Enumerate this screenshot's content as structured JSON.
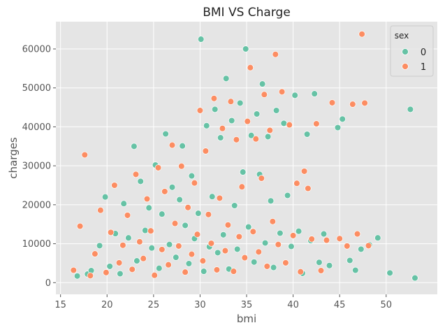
{
  "chart_data": {
    "type": "scatter",
    "title": "BMI VS Charge",
    "xlabel": "bmi",
    "ylabel": "charges",
    "xlim": [
      14.5,
      55.5
    ],
    "ylim": [
      -3000,
      67000
    ],
    "xticks": [
      15,
      20,
      25,
      30,
      35,
      40,
      45,
      50
    ],
    "yticks": [
      0,
      10000,
      20000,
      30000,
      40000,
      50000,
      60000
    ],
    "xtick_labels": [
      "15",
      "20",
      "25",
      "30",
      "35",
      "40",
      "45",
      "50"
    ],
    "ytick_labels": [
      "0",
      "10000",
      "20000",
      "30000",
      "40000",
      "50000",
      "60000"
    ],
    "grid": true,
    "legend": {
      "title": "sex",
      "placement": "top-right",
      "entries": [
        {
          "label": "0",
          "color": "#66c2a5"
        },
        {
          "label": "1",
          "color": "#fc8d62"
        }
      ]
    },
    "series": [
      {
        "name": "0",
        "color": "#66c2a5",
        "points": [
          [
            16.8,
            1700
          ],
          [
            17.9,
            2200
          ],
          [
            18.3,
            3100
          ],
          [
            19.2,
            9500
          ],
          [
            19.8,
            22000
          ],
          [
            20.3,
            4200
          ],
          [
            20.9,
            12600
          ],
          [
            21.4,
            2300
          ],
          [
            21.8,
            20300
          ],
          [
            22.3,
            11500
          ],
          [
            22.9,
            35000
          ],
          [
            23.2,
            5600
          ],
          [
            23.6,
            26000
          ],
          [
            24.1,
            13400
          ],
          [
            24.5,
            19200
          ],
          [
            24.8,
            8900
          ],
          [
            25.2,
            30200
          ],
          [
            25.6,
            3700
          ],
          [
            25.9,
            17600
          ],
          [
            26.3,
            38200
          ],
          [
            26.7,
            9800
          ],
          [
            27.0,
            24500
          ],
          [
            27.4,
            6500
          ],
          [
            27.8,
            21300
          ],
          [
            28.1,
            35100
          ],
          [
            28.4,
            14700
          ],
          [
            28.8,
            4900
          ],
          [
            29.1,
            27400
          ],
          [
            29.4,
            11300
          ],
          [
            29.8,
            17800
          ],
          [
            30.1,
            62500
          ],
          [
            30.4,
            2900
          ],
          [
            30.7,
            40300
          ],
          [
            31.0,
            9200
          ],
          [
            31.3,
            22100
          ],
          [
            31.6,
            44500
          ],
          [
            31.9,
            7700
          ],
          [
            32.2,
            37200
          ],
          [
            32.5,
            12300
          ],
          [
            32.8,
            52400
          ],
          [
            33.1,
            3500
          ],
          [
            33.4,
            41600
          ],
          [
            33.7,
            19800
          ],
          [
            34.0,
            8600
          ],
          [
            34.3,
            46100
          ],
          [
            34.6,
            28400
          ],
          [
            34.9,
            60000
          ],
          [
            35.2,
            14300
          ],
          [
            35.5,
            37800
          ],
          [
            35.8,
            5300
          ],
          [
            36.1,
            43300
          ],
          [
            36.4,
            27800
          ],
          [
            36.7,
            51000
          ],
          [
            37.0,
            10200
          ],
          [
            37.3,
            37500
          ],
          [
            37.6,
            21000
          ],
          [
            37.9,
            3900
          ],
          [
            38.2,
            44200
          ],
          [
            38.6,
            12700
          ],
          [
            39.0,
            40900
          ],
          [
            39.4,
            22400
          ],
          [
            39.8,
            9300
          ],
          [
            40.2,
            48100
          ],
          [
            40.6,
            13200
          ],
          [
            41.0,
            2400
          ],
          [
            41.5,
            38100
          ],
          [
            41.9,
            10800
          ],
          [
            42.3,
            48500
          ],
          [
            42.8,
            5200
          ],
          [
            43.3,
            12500
          ],
          [
            43.9,
            4400
          ],
          [
            44.8,
            39800
          ],
          [
            45.3,
            42000
          ],
          [
            46.1,
            5700
          ],
          [
            46.7,
            3200
          ],
          [
            47.3,
            8600
          ],
          [
            48.2,
            9700
          ],
          [
            49.1,
            11500
          ],
          [
            50.4,
            2500
          ],
          [
            52.6,
            44500
          ],
          [
            53.1,
            1200
          ]
        ]
      },
      {
        "name": "1",
        "color": "#fc8d62",
        "points": [
          [
            16.4,
            3200
          ],
          [
            17.1,
            14500
          ],
          [
            17.6,
            32800
          ],
          [
            18.2,
            1800
          ],
          [
            18.7,
            7400
          ],
          [
            19.3,
            18600
          ],
          [
            19.9,
            2600
          ],
          [
            20.4,
            12900
          ],
          [
            20.8,
            25000
          ],
          [
            21.3,
            5100
          ],
          [
            21.7,
            9600
          ],
          [
            22.2,
            17300
          ],
          [
            22.7,
            3400
          ],
          [
            23.1,
            27800
          ],
          [
            23.5,
            10500
          ],
          [
            23.9,
            6200
          ],
          [
            24.3,
            21500
          ],
          [
            24.7,
            13300
          ],
          [
            25.1,
            1900
          ],
          [
            25.5,
            29500
          ],
          [
            25.9,
            8500
          ],
          [
            26.2,
            23400
          ],
          [
            26.6,
            4600
          ],
          [
            27.0,
            35300
          ],
          [
            27.3,
            15200
          ],
          [
            27.7,
            9400
          ],
          [
            28.0,
            29900
          ],
          [
            28.4,
            2700
          ],
          [
            28.7,
            19300
          ],
          [
            29.1,
            7300
          ],
          [
            29.4,
            25600
          ],
          [
            29.7,
            12400
          ],
          [
            30.0,
            44200
          ],
          [
            30.3,
            5600
          ],
          [
            30.6,
            33800
          ],
          [
            30.9,
            17500
          ],
          [
            31.2,
            10100
          ],
          [
            31.5,
            47300
          ],
          [
            31.8,
            3300
          ],
          [
            32.1,
            21700
          ],
          [
            32.4,
            39600
          ],
          [
            32.7,
            8200
          ],
          [
            33.0,
            14800
          ],
          [
            33.3,
            46500
          ],
          [
            33.6,
            2900
          ],
          [
            33.9,
            36700
          ],
          [
            34.2,
            11800
          ],
          [
            34.5,
            24600
          ],
          [
            34.8,
            6400
          ],
          [
            35.1,
            41400
          ],
          [
            35.4,
            55200
          ],
          [
            35.7,
            13100
          ],
          [
            36.0,
            36900
          ],
          [
            36.3,
            7900
          ],
          [
            36.6,
            26800
          ],
          [
            36.9,
            48300
          ],
          [
            37.2,
            4200
          ],
          [
            37.5,
            39100
          ],
          [
            37.8,
            15700
          ],
          [
            38.1,
            58600
          ],
          [
            38.4,
            9800
          ],
          [
            38.8,
            49000
          ],
          [
            39.2,
            5100
          ],
          [
            39.6,
            40500
          ],
          [
            40.0,
            12100
          ],
          [
            40.4,
            25500
          ],
          [
            40.8,
            2800
          ],
          [
            41.2,
            28600
          ],
          [
            41.6,
            24200
          ],
          [
            42.0,
            11200
          ],
          [
            42.5,
            40800
          ],
          [
            43.0,
            3100
          ],
          [
            43.6,
            10900
          ],
          [
            44.2,
            46200
          ],
          [
            45.0,
            11300
          ],
          [
            45.8,
            9400
          ],
          [
            46.4,
            45800
          ],
          [
            46.9,
            12500
          ],
          [
            47.4,
            63800
          ],
          [
            47.7,
            46100
          ],
          [
            48.1,
            9500
          ]
        ]
      }
    ]
  }
}
